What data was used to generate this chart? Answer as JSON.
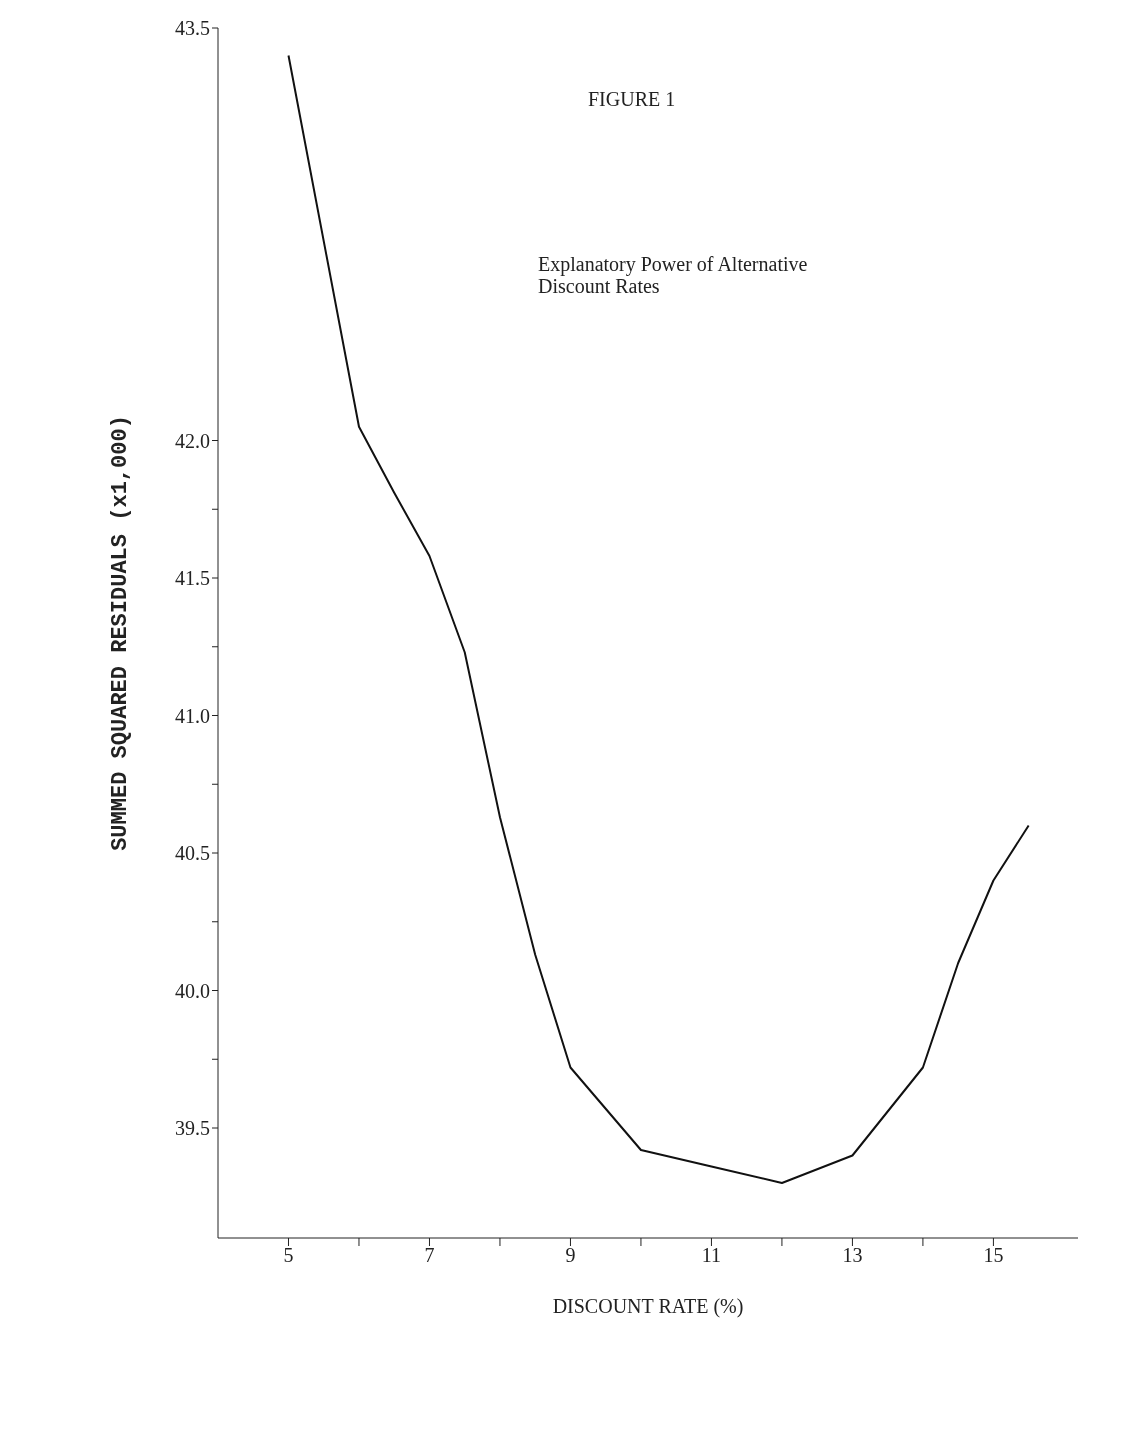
{
  "chart_data": {
    "type": "line",
    "title": "FIGURE 1",
    "subtitle": "Explanatory Power of Alternative\nDiscount Rates",
    "xlabel": "DISCOUNT RATE (%)",
    "ylabel": "SUMMED SQUARED RESIDUALS (x1,000)",
    "x": [
      5,
      6,
      6.5,
      7,
      7.5,
      8,
      8.5,
      9,
      10,
      11,
      12,
      13,
      14,
      14.5,
      15,
      15.5
    ],
    "series": [
      {
        "color": "#111111",
        "values": [
          43.4,
          42.05,
          41.81,
          41.58,
          41.23,
          40.63,
          40.13,
          39.72,
          39.42,
          39.36,
          39.3,
          39.4,
          39.72,
          40.1,
          40.4,
          40.6
        ]
      }
    ],
    "xlim": [
      4,
      16.2
    ],
    "xticks": [
      5,
      {
        "value": 6,
        "label": null
      },
      7,
      {
        "value": 8,
        "label": null
      },
      9,
      {
        "value": 10,
        "label": null
      },
      11,
      {
        "value": 12,
        "label": null
      },
      13,
      {
        "value": 14,
        "label": null
      },
      15
    ],
    "ylim": [
      39.1,
      43.5
    ],
    "yticks": [
      {
        "value": 39.5,
        "label": "39.5"
      },
      {
        "value": 39.75,
        "label": null
      },
      {
        "value": 40,
        "label": "40.0"
      },
      {
        "value": 40.25,
        "label": null
      },
      {
        "value": 40.5,
        "label": "40.5"
      },
      {
        "value": 40.75,
        "label": null
      },
      {
        "value": 41,
        "label": "41.0"
      },
      {
        "value": 41.25,
        "label": null
      },
      {
        "value": 41.5,
        "label": "41.5"
      },
      {
        "value": 41.75,
        "label": null
      },
      {
        "value": 42,
        "label": "42.0"
      },
      {
        "value": 43.5,
        "label": "43.5"
      }
    ],
    "grid": false,
    "marker": "none",
    "line_style": "solid"
  }
}
